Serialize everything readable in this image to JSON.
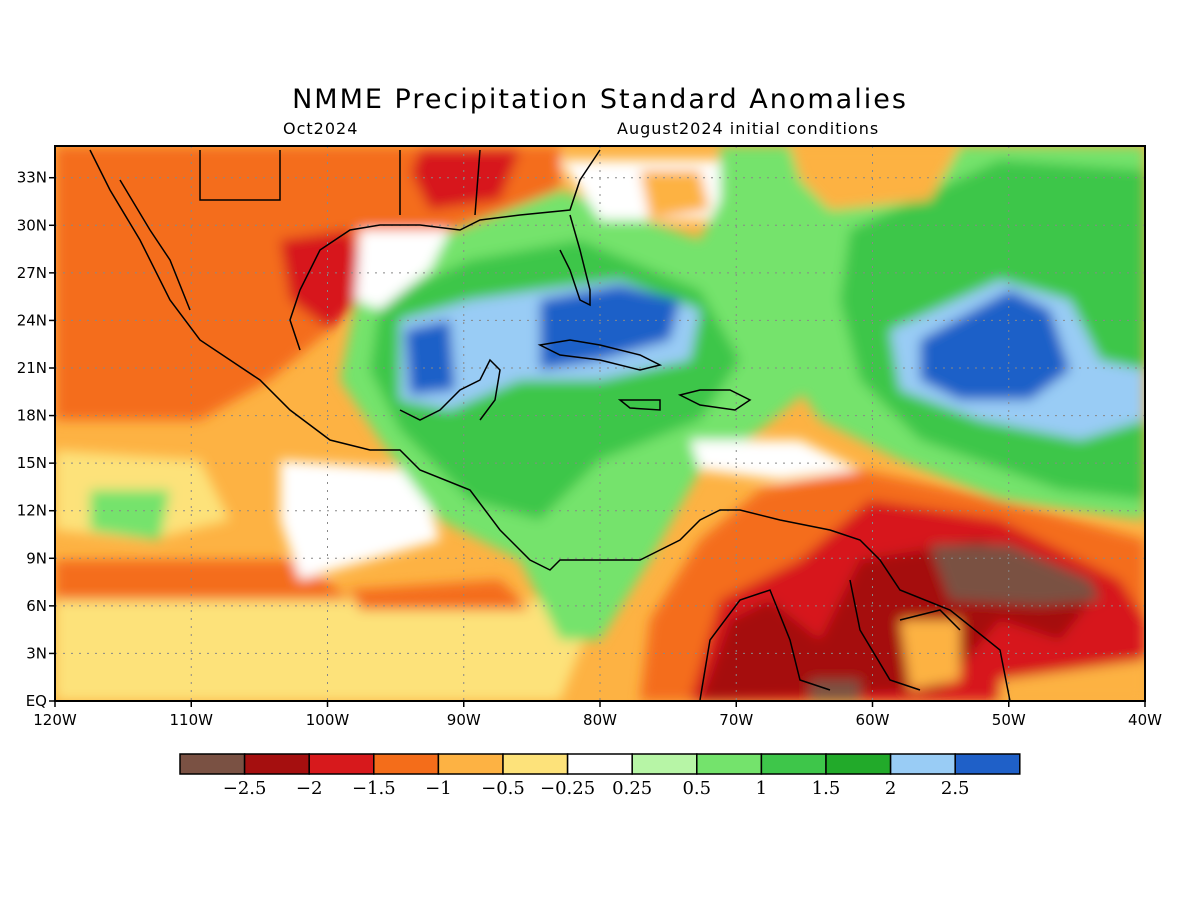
{
  "header": {
    "title": "NMME Precipitation Standard Anomalies",
    "valid_month": "Oct2024",
    "initial_conditions": "August2024 initial conditions"
  },
  "map": {
    "region": {
      "lon_min": -120,
      "lon_max": -40,
      "lat_min": 0,
      "lat_max": 35
    },
    "x_ticks": [
      "120W",
      "110W",
      "100W",
      "90W",
      "80W",
      "70W",
      "60W",
      "50W",
      "40W"
    ],
    "y_ticks": [
      "EQ",
      "3N",
      "6N",
      "9N",
      "12N",
      "15N",
      "18N",
      "21N",
      "24N",
      "27N",
      "30N",
      "33N"
    ],
    "grid": true
  },
  "colorbar": {
    "colors": [
      "#7a5143",
      "#a50f0f",
      "#d7191c",
      "#f46d1a",
      "#fdb243",
      "#fde27a",
      "#ffffff",
      "#b7f5a6",
      "#74e36c",
      "#3ec64a",
      "#22aa2a",
      "#99ccf5",
      "#1f60c8"
    ],
    "labels": [
      "−2.5",
      "−2",
      "−1.5",
      "−1",
      "−0.5",
      "−0.25",
      "0.25",
      "0.5",
      "1",
      "1.5",
      "2",
      "2.5"
    ]
  }
}
